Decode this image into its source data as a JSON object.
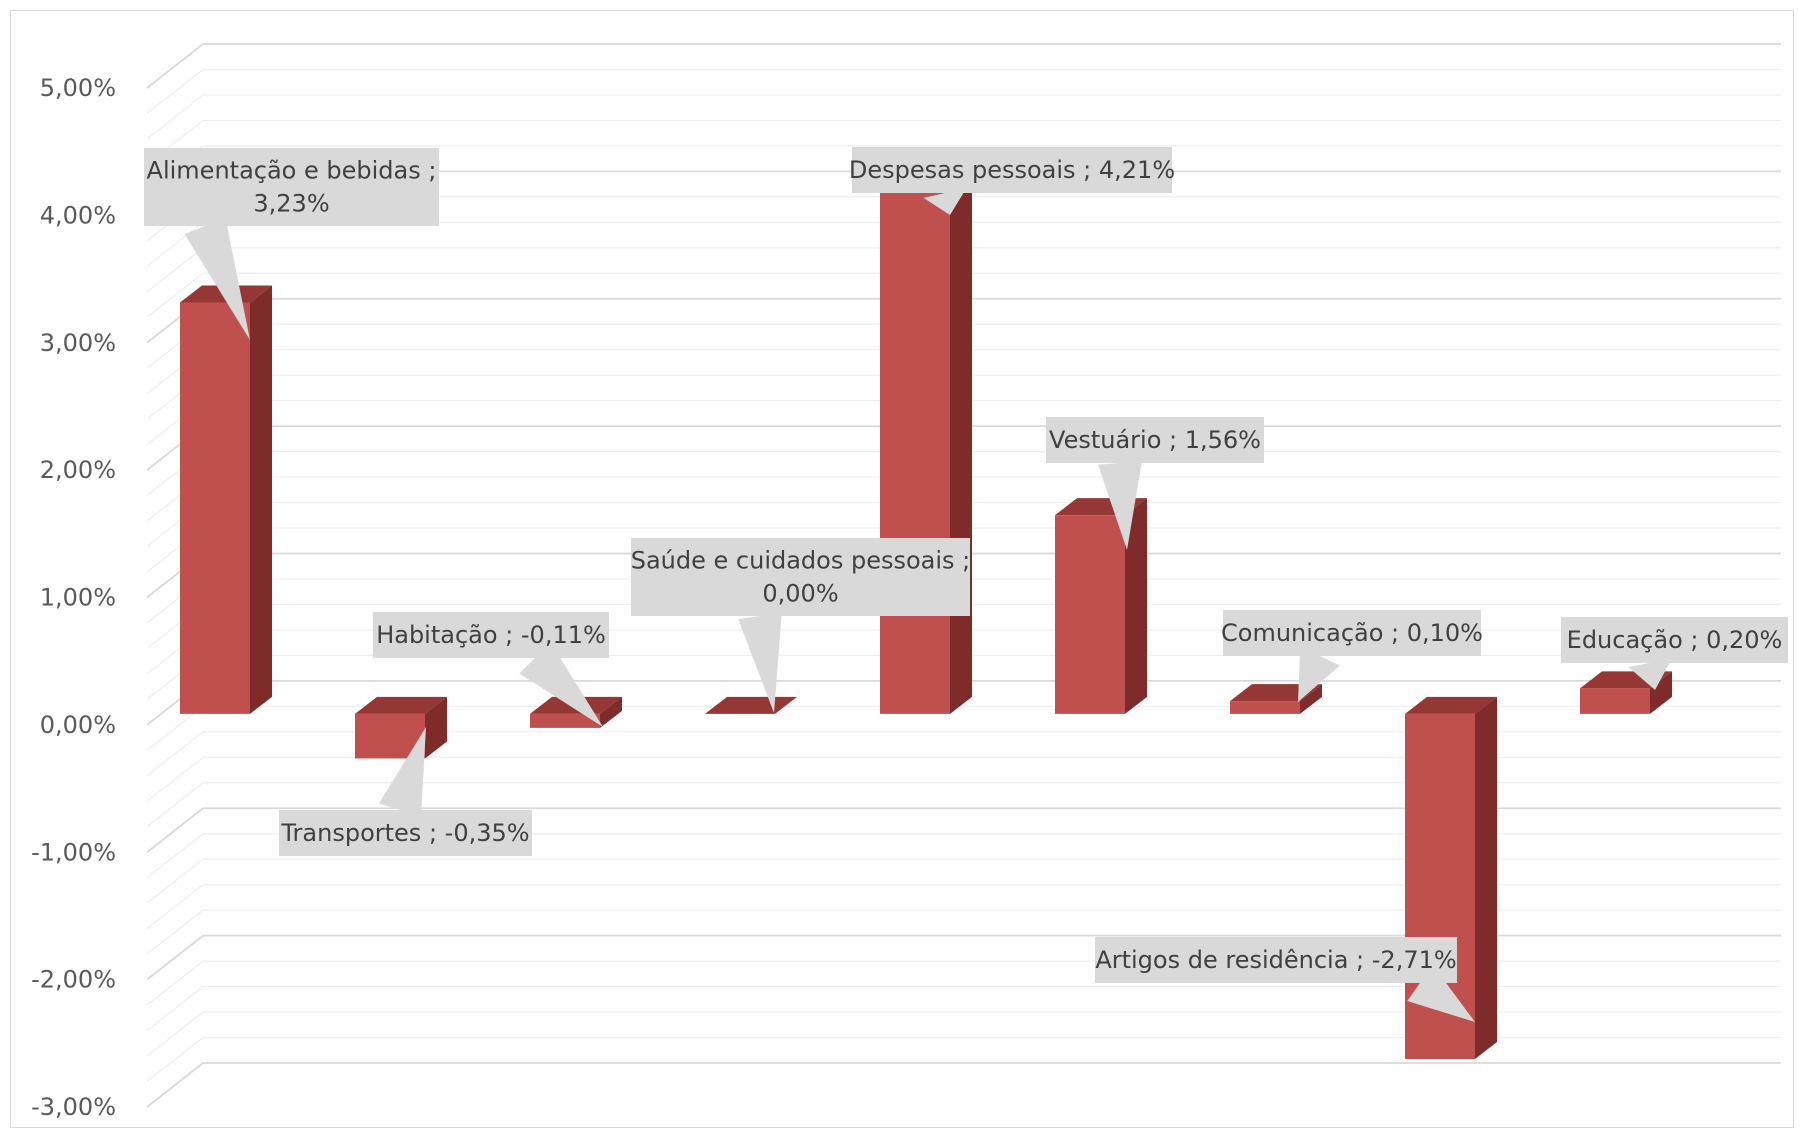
{
  "chart_data": {
    "type": "bar",
    "style": "3d-column",
    "categories": [
      "Alimentação e bebidas",
      "Transportes",
      "Habitação",
      "Saúde e cuidados pessoais",
      "Despesas pessoais",
      "Vestuário",
      "Comunicação",
      "Artigos de residência",
      "Educação"
    ],
    "values": [
      3.23,
      -0.35,
      -0.11,
      0.0,
      4.21,
      1.56,
      0.1,
      -2.71,
      0.2
    ],
    "data_labels": [
      [
        "Alimentação e bebidas ;",
        "3,23%"
      ],
      [
        "Transportes ; -0,35%"
      ],
      [
        "Habitação ; -0,11%"
      ],
      [
        "Saúde e cuidados pessoais ;",
        "0,00%"
      ],
      [
        "Despesas pessoais ; 4,21%"
      ],
      [
        "Vestuário ; 1,56%"
      ],
      [
        "Comunicação ; 0,10%"
      ],
      [
        "Artigos de residência ; -2,71%"
      ],
      [
        "Educação ; 0,20%"
      ]
    ],
    "ylim": [
      -3.0,
      5.0
    ],
    "yticks": [
      5.0,
      4.0,
      3.0,
      2.0,
      1.0,
      0.0,
      -1.0,
      -2.0,
      -3.0
    ],
    "ytick_labels": [
      "5,00%",
      "4,00%",
      "3,00%",
      "2,00%",
      "1,00%",
      "0,00%",
      "-1,00%",
      "-2,00%",
      "-3,00%"
    ],
    "minor_grid_step": 0.2,
    "grid": true,
    "legend": false,
    "colors": {
      "bar_front": "#c0504d",
      "bar_side": "#7f2b2a",
      "bar_top": "#953734",
      "callout_bg": "#d9d9d9",
      "callout_text": "#404040",
      "grid_major": "#d9d9d9",
      "grid_minor": "#eeeeee",
      "tick_text": "#595959"
    }
  }
}
